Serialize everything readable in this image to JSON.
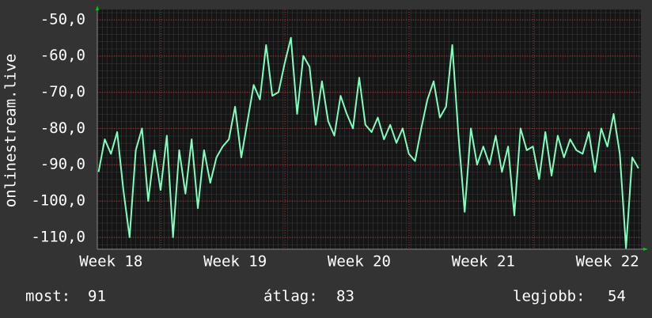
{
  "chart_data": {
    "type": "line",
    "ylabel": "onlinestream.live",
    "x": [
      17.9,
      17.95,
      18.0,
      18.05,
      18.1,
      18.15,
      18.2,
      18.25,
      18.3,
      18.35,
      18.4,
      18.45,
      18.5,
      18.55,
      18.6,
      18.65,
      18.7,
      18.75,
      18.8,
      18.85,
      18.9,
      18.95,
      19.0,
      19.05,
      19.1,
      19.15,
      19.2,
      19.25,
      19.3,
      19.35,
      19.4,
      19.45,
      19.5,
      19.55,
      19.6,
      19.65,
      19.7,
      19.75,
      19.8,
      19.85,
      19.9,
      19.95,
      20.0,
      20.05,
      20.1,
      20.15,
      20.2,
      20.25,
      20.3,
      20.35,
      20.4,
      20.45,
      20.5,
      20.55,
      20.6,
      20.65,
      20.7,
      20.75,
      20.8,
      20.85,
      20.9,
      20.95,
      21.0,
      21.05,
      21.1,
      21.15,
      21.2,
      21.25,
      21.3,
      21.35,
      21.4,
      21.45,
      21.5,
      21.55,
      21.6,
      21.65,
      21.7,
      21.75,
      21.8,
      21.85,
      21.9,
      21.95,
      22.0,
      22.05,
      22.1,
      22.15,
      22.2,
      22.25
    ],
    "series": [
      {
        "color": "#7fffbf",
        "values": [
          -92,
          -83,
          -87,
          -81,
          -97,
          -110,
          -86,
          -80,
          -100,
          -86,
          -97,
          -82,
          -110,
          -86,
          -98,
          -83,
          -102,
          -86,
          -95,
          -88,
          -85,
          -83,
          -74,
          -88,
          -78,
          -68,
          -72,
          -57,
          -71,
          -70,
          -62,
          -55,
          -76,
          -60,
          -63,
          -79,
          -67,
          -78,
          -82,
          -71,
          -76,
          -80,
          -66,
          -79,
          -81,
          -77,
          -83,
          -79,
          -84,
          -80,
          -87,
          -89,
          -80,
          -72,
          -67,
          -77,
          -74,
          -57,
          -82,
          -103,
          -80,
          -90,
          -85,
          -90,
          -82,
          -92,
          -85,
          -104,
          -80,
          -86,
          -85,
          -94,
          -81,
          -93,
          -82,
          -88,
          -83,
          -86,
          -87,
          -81,
          -92,
          -80,
          -85,
          -76,
          -87,
          -113,
          -88,
          -91
        ]
      }
    ],
    "xlim": [
      17.89,
      22.27
    ],
    "xticks": [
      {
        "value": 18,
        "label": "Week 18"
      },
      {
        "value": 19,
        "label": "Week 19"
      },
      {
        "value": 20,
        "label": "Week 20"
      },
      {
        "value": 21,
        "label": "Week 21"
      },
      {
        "value": 22,
        "label": "Week 22"
      }
    ],
    "ylim": [
      -113.3,
      -47.2
    ],
    "yticks": [
      {
        "value": -50,
        "label": "-50,0"
      },
      {
        "value": -60,
        "label": "-60,0"
      },
      {
        "value": -70,
        "label": "-70,0"
      },
      {
        "value": -80,
        "label": "-80,0"
      },
      {
        "value": -90,
        "label": "-90,0"
      },
      {
        "value": -100,
        "label": "-100,0"
      },
      {
        "value": -110,
        "label": "-110,0"
      }
    ],
    "grid": true,
    "stats": [
      {
        "label": "most:",
        "value": 91
      },
      {
        "label": "átlag:",
        "value": 83
      },
      {
        "label": "legjobb:",
        "value": 54
      }
    ]
  }
}
